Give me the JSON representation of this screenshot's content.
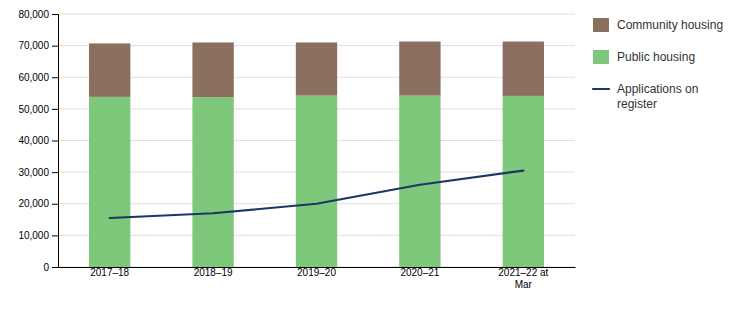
{
  "chart_data": {
    "type": "bar",
    "stacked": true,
    "categories": [
      "2017–18",
      "2018–19",
      "2019–20",
      "2020–21",
      "2021–22 at\nMar"
    ],
    "series": [
      {
        "name": "Public housing",
        "type": "bar",
        "color": "#7DC87A",
        "values": [
          53800,
          53700,
          54200,
          54200,
          54100
        ]
      },
      {
        "name": "Community housing",
        "type": "bar",
        "color": "#8B7060",
        "values": [
          16900,
          17300,
          16800,
          17100,
          17200
        ]
      },
      {
        "name": "Applications on\nregister",
        "type": "line",
        "color": "#1F3467",
        "values": [
          15500,
          17000,
          20000,
          26000,
          30500
        ]
      }
    ],
    "ylim": [
      0,
      80000
    ],
    "yticks": [
      0,
      {
        "value": 10000,
        "label": "10,000"
      },
      {
        "value": 20000,
        "label": "20,000"
      },
      {
        "value": 30000,
        "label": "30,000"
      },
      {
        "value": 40000,
        "label": "40,000"
      },
      {
        "value": 50000,
        "label": "50,000"
      },
      {
        "value": 60000,
        "label": "60,000"
      },
      {
        "value": 70000,
        "label": "70,000"
      },
      {
        "value": 80000,
        "label": "80,000"
      }
    ],
    "grid": true,
    "legend": "right"
  }
}
